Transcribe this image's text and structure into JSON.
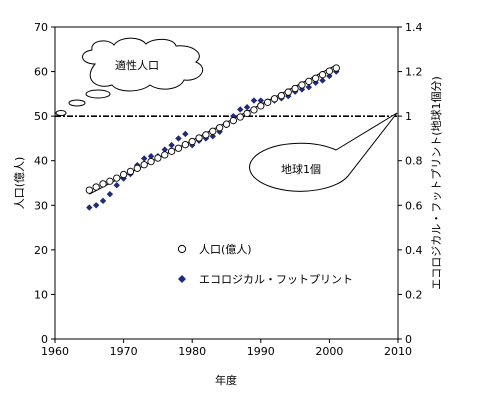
{
  "chart_data": {
    "type": "scatter",
    "xlabel": "年度",
    "ylabel": "人口(億人)",
    "y2label": "エコロジカル・フットプリント(地球1個分)",
    "xlim": [
      1960,
      2010
    ],
    "ylim": [
      0,
      70
    ],
    "y2lim": [
      0,
      1.4
    ],
    "x_ticks": [
      "1960",
      "1970",
      "1980",
      "1990",
      "2000",
      "2010"
    ],
    "y_ticks": [
      "0",
      "10",
      "20",
      "30",
      "40",
      "50",
      "60",
      "70"
    ],
    "y2_ticks": [
      "0",
      "0.2",
      "0.4",
      "0.6",
      "0.8",
      "1",
      "1.2",
      "1.4"
    ],
    "series": [
      {
        "name": "人口(億人)",
        "axis": "left",
        "marker": "open-circle",
        "color": "#000000",
        "x": [
          1965,
          1966,
          1967,
          1968,
          1969,
          1970,
          1971,
          1972,
          1973,
          1974,
          1975,
          1976,
          1977,
          1978,
          1979,
          1980,
          1981,
          1982,
          1983,
          1984,
          1985,
          1986,
          1987,
          1988,
          1989,
          1990,
          1991,
          1992,
          1993,
          1994,
          1995,
          1996,
          1997,
          1998,
          1999,
          2000,
          2001
        ],
        "values": [
          33.4,
          34.1,
          34.8,
          35.4,
          36.1,
          36.9,
          37.6,
          38.3,
          39.1,
          39.8,
          40.6,
          41.3,
          42.1,
          42.8,
          43.6,
          44.3,
          45.1,
          45.8,
          46.6,
          47.4,
          48.2,
          49.0,
          49.8,
          50.6,
          51.4,
          52.3,
          53.1,
          53.9,
          54.6,
          55.4,
          56.2,
          57.0,
          57.8,
          58.5,
          59.3,
          60.1,
          60.8
        ]
      },
      {
        "name": "エコロジカル・フットプリント",
        "axis": "right",
        "marker": "filled-diamond",
        "color": "#1f2a7a",
        "x": [
          1965,
          1966,
          1967,
          1968,
          1969,
          1970,
          1971,
          1972,
          1973,
          1974,
          1975,
          1976,
          1977,
          1978,
          1979,
          1980,
          1981,
          1982,
          1983,
          1984,
          1985,
          1986,
          1987,
          1988,
          1989,
          1990,
          1991,
          1992,
          1993,
          1994,
          1995,
          1996,
          1997,
          1998,
          1999,
          2000,
          2001
        ],
        "values": [
          0.59,
          0.6,
          0.62,
          0.65,
          0.69,
          0.72,
          0.74,
          0.78,
          0.81,
          0.82,
          0.82,
          0.85,
          0.87,
          0.9,
          0.92,
          0.87,
          0.89,
          0.9,
          0.91,
          0.93,
          0.96,
          1.0,
          1.03,
          1.04,
          1.07,
          1.07,
          1.06,
          1.07,
          1.08,
          1.09,
          1.11,
          1.12,
          1.13,
          1.15,
          1.16,
          1.18,
          1.2
        ]
      }
    ],
    "trendline": {
      "series": "人口(億人)",
      "x": [
        1965,
        2001
      ],
      "values": [
        32.5,
        61.5
      ]
    },
    "reference_line": {
      "axis": "right",
      "value": 1.0,
      "style": "dashed"
    },
    "annotations": [
      {
        "text": "適性人口",
        "shape": "thought-cloud"
      },
      {
        "text": "地球1個",
        "shape": "callout-ellipse"
      }
    ],
    "legend": {
      "position": "center-bottom"
    },
    "grid": false
  }
}
